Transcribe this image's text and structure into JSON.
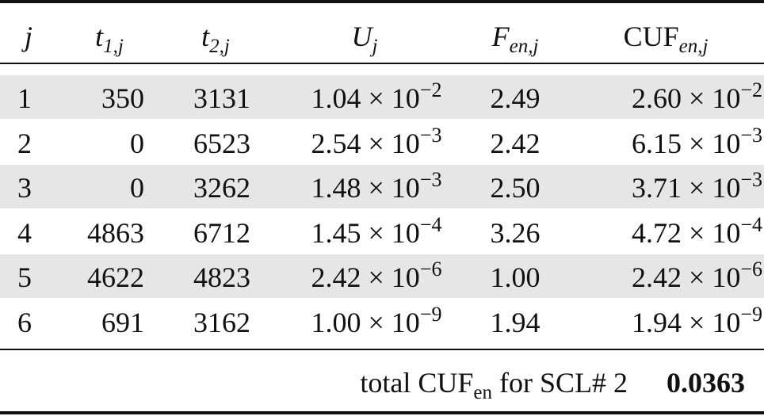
{
  "table": {
    "header": [
      {
        "base": "j"
      },
      {
        "base": "t",
        "sub": "1,j"
      },
      {
        "base": "t",
        "sub": "2,j"
      },
      {
        "base": "U",
        "sub": "j"
      },
      {
        "base": "F",
        "sub": "en,j"
      },
      {
        "base": "CUF",
        "sub": "en,j"
      }
    ],
    "rows": [
      [
        "1",
        "350",
        "3131",
        {
          "text": "1.04 × 10",
          "sup": "−2"
        },
        "2.49",
        {
          "text": "2.60 × 10",
          "sup": "−2"
        }
      ],
      [
        "2",
        "0",
        "6523",
        {
          "text": "2.54 × 10",
          "sup": "−3"
        },
        "2.42",
        {
          "text": "6.15 × 10",
          "sup": "−3"
        }
      ],
      [
        "3",
        "0",
        "3262",
        {
          "text": "1.48 × 10",
          "sup": "−3"
        },
        "2.50",
        {
          "text": "3.71 × 10",
          "sup": "−3"
        }
      ],
      [
        "4",
        "4863",
        "6712",
        {
          "text": "1.45 × 10",
          "sup": "−4"
        },
        "3.26",
        {
          "text": "4.72 × 10",
          "sup": "−4"
        }
      ],
      [
        "5",
        "4622",
        "4823",
        {
          "text": "2.42 × 10",
          "sup": "−6"
        },
        "1.00",
        {
          "text": "2.42 × 10",
          "sup": "−6"
        }
      ],
      [
        "6",
        "691",
        "3162",
        {
          "text": "1.00 × 10",
          "sup": "−9"
        },
        "1.94",
        {
          "text": "1.94 × 10",
          "sup": "−9"
        }
      ]
    ]
  },
  "footer": {
    "label": "total CUF",
    "label_sub": "en",
    "label_rest": "for SCL# 2",
    "value": "0.0363"
  }
}
